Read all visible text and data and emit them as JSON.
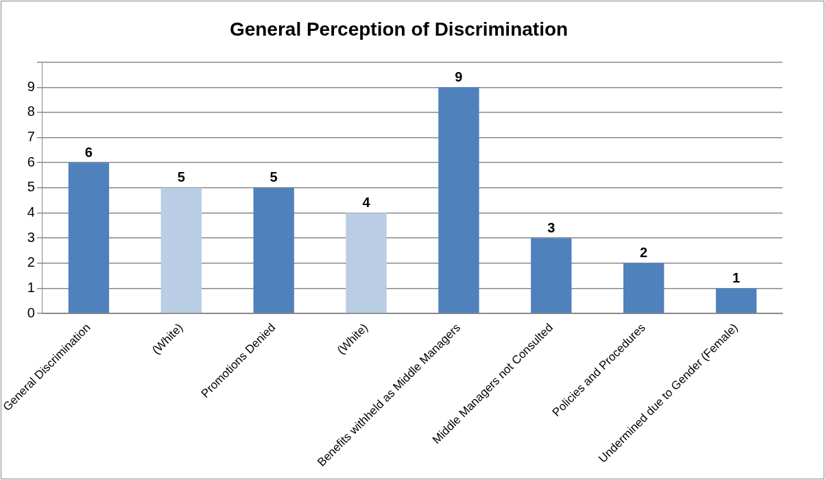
{
  "chart_data": {
    "type": "bar",
    "title": "General Perception of Discrimination",
    "categories": [
      "General Discrimination",
      "(White)",
      "Promotions Denied",
      "(White)",
      "Benefits withheld as Middle Managers",
      "Middle Managers not Consulted",
      "Policies and Procedures",
      "Undermined due to Gender (Female)"
    ],
    "values": [
      6,
      5,
      5,
      4,
      9,
      3,
      2,
      1
    ],
    "colors": [
      "#4f81bd",
      "#b9cde5",
      "#4f81bd",
      "#b9cde5",
      "#4f81bd",
      "#4f81bd",
      "#4f81bd",
      "#4f81bd"
    ],
    "ylim": [
      0,
      10
    ],
    "yticks": [
      0,
      1,
      2,
      3,
      4,
      5,
      6,
      7,
      8,
      9,
      {
        "value": 10,
        "label": null
      }
    ],
    "grid": "y",
    "data_labels": true
  }
}
